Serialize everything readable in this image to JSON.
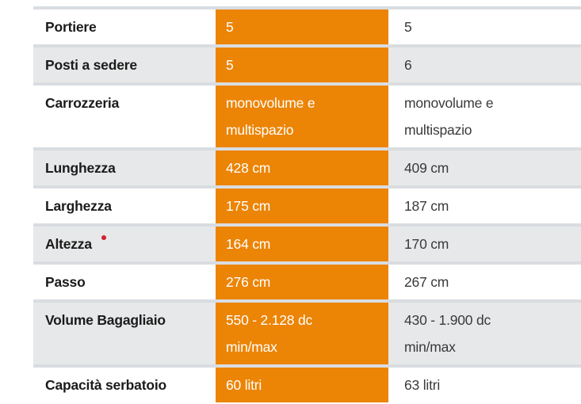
{
  "table": {
    "description": "vehicle specification comparison table",
    "rows": [
      {
        "label": "Portiere",
        "highlight": "5",
        "other": "5"
      },
      {
        "label": "Posti a sedere",
        "highlight": "5",
        "other": "6"
      },
      {
        "label": "Carrozzeria",
        "highlight": "monovolume e\nmultispazio",
        "other": "monovolume e\nmultispazio"
      },
      {
        "label": "Lunghezza",
        "highlight": "428 cm",
        "other": "409 cm"
      },
      {
        "label": "Larghezza",
        "highlight": "175 cm",
        "other": "187 cm"
      },
      {
        "label": "Altezza",
        "marker_icon": "red-footnote-dot",
        "highlight": "164 cm",
        "other": "170 cm"
      },
      {
        "label": "Passo",
        "highlight": "276 cm",
        "other": "267 cm"
      },
      {
        "label": "Volume Bagagliaio",
        "highlight": "550 - 2.128 dc\nmin/max",
        "other": "430 - 1.900 dc\nmin/max"
      },
      {
        "label": "Capacità serbatoio",
        "highlight": "60 litri",
        "other": "63 litri"
      }
    ]
  },
  "colors": {
    "accent_orange": "#EC8405",
    "divider": "#D9DDE1",
    "shaded_row": "#E7E8E9",
    "label_text": "#1B1B1B",
    "value_text": "#3A3A3A",
    "highlight_text": "#FFFFFF",
    "footnote_marker": "#D2202E"
  }
}
